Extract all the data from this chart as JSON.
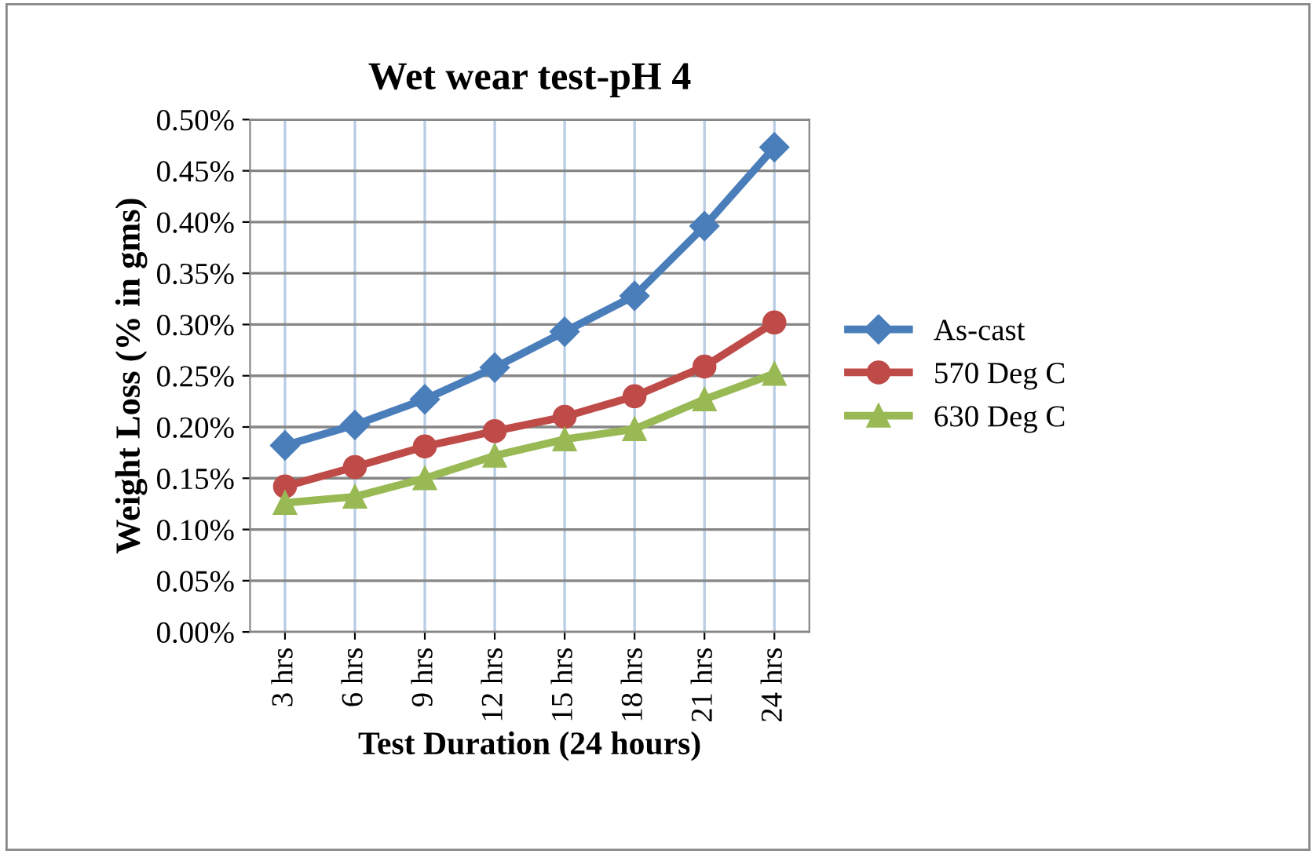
{
  "chart_data": {
    "type": "line",
    "title": "Wet wear test-pH 4",
    "xlabel": "Test Duration (24 hours)",
    "ylabel": "Weight Loss (% in gms)",
    "categories": [
      "3 hrs",
      "6 hrs",
      "9 hrs",
      "12 hrs",
      "15 hrs",
      "18 hrs",
      "21 hrs",
      "24 hrs"
    ],
    "series": [
      {
        "name": "As-cast",
        "color": "#4a7ebb",
        "marker": "diamond",
        "values": [
          0.182,
          0.202,
          0.227,
          0.258,
          0.293,
          0.328,
          0.396,
          0.473
        ]
      },
      {
        "name": "570 Deg C",
        "color": "#be4b48",
        "marker": "circle",
        "values": [
          0.142,
          0.161,
          0.181,
          0.196,
          0.21,
          0.23,
          0.259,
          0.302
        ]
      },
      {
        "name": "630 Deg C",
        "color": "#98b954",
        "marker": "triangle",
        "values": [
          0.126,
          0.132,
          0.15,
          0.172,
          0.188,
          0.198,
          0.227,
          0.252
        ]
      }
    ],
    "ylim": [
      0,
      0.5
    ],
    "yticks": [
      {
        "value": 0,
        "label": "0.00%"
      },
      {
        "value": 0.05,
        "label": "0.05%"
      },
      {
        "value": 0.1,
        "label": "0.10%"
      },
      {
        "value": 0.15,
        "label": "0.15%"
      },
      {
        "value": 0.2,
        "label": "0.20%"
      },
      {
        "value": 0.25,
        "label": "0.25%"
      },
      {
        "value": 0.3,
        "label": "0.30%"
      },
      {
        "value": 0.35,
        "label": "0.35%"
      },
      {
        "value": 0.4,
        "label": "0.40%"
      },
      {
        "value": 0.45,
        "label": "0.45%"
      },
      {
        "value": 0.5,
        "label": "0.50%"
      }
    ],
    "grid": true,
    "legend": "right",
    "line_style": "solid"
  }
}
